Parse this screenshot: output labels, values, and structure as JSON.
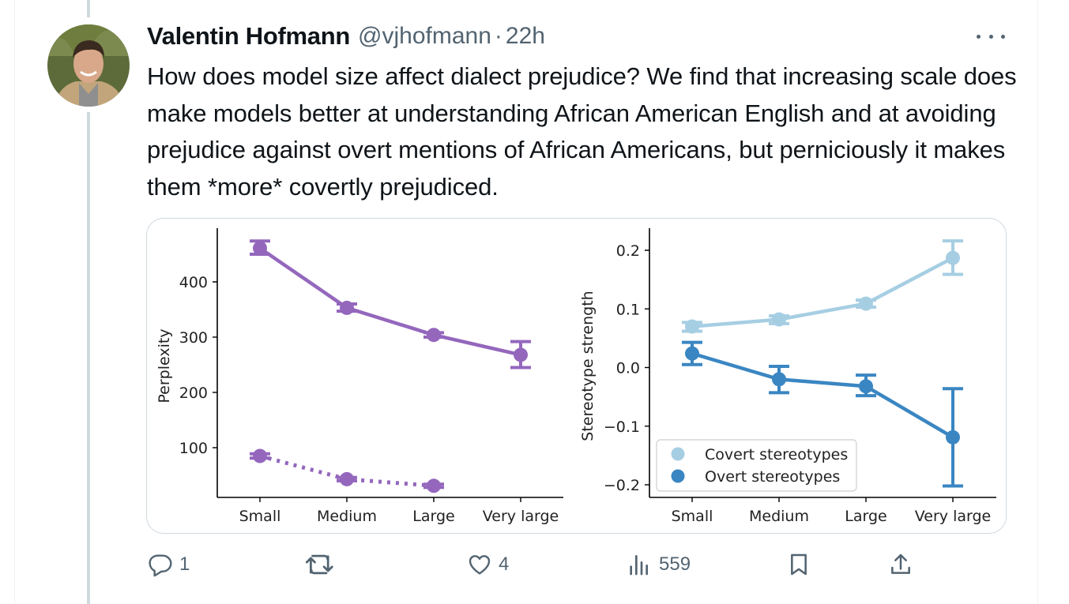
{
  "tweet": {
    "author_name": "Valentin Hofmann",
    "handle": "@vjhofmann",
    "separator": "·",
    "time": "22h",
    "text": "How does model size affect dialect prejudice? We find that increasing scale does make models better at understanding African American English and at avoiding prejudice against overt mentions of African Americans, but perniciously it makes them *more* covertly prejudiced."
  },
  "actions": {
    "replies": "1",
    "likes": "4",
    "views": "559"
  },
  "colors": {
    "purple": "#9467bd",
    "covert": "#a6cee3",
    "overt": "#3a86c2",
    "text_secondary": "#536471"
  },
  "icons": [
    "reply-icon",
    "retweet-icon",
    "like-icon",
    "views-icon",
    "bookmark-icon",
    "share-icon",
    "more-icon"
  ],
  "chart_data": [
    {
      "type": "line",
      "categories": [
        "Small",
        "Medium",
        "Large",
        "Very large"
      ],
      "ylabel": "Perplexity",
      "yticks": [
        100,
        200,
        300,
        400
      ],
      "ylim": [
        20,
        490
      ],
      "series": [
        {
          "style": "solid",
          "color": "#9467bd",
          "values": [
            461,
            353,
            304,
            268
          ],
          "err_low": [
            450,
            347,
            300,
            245
          ],
          "err_high": [
            474,
            360,
            308,
            292
          ]
        },
        {
          "style": "dotted",
          "color": "#9467bd",
          "values": [
            85,
            43,
            31,
            null
          ],
          "err_low": [
            81,
            40,
            28,
            null
          ],
          "err_high": [
            89,
            46,
            34,
            null
          ]
        }
      ]
    },
    {
      "type": "line",
      "categories": [
        "Small",
        "Medium",
        "Large",
        "Very large"
      ],
      "ylabel": "Stereotype strength",
      "yticks": [
        -0.2,
        -0.1,
        0.0,
        0.1,
        0.2
      ],
      "ytick_labels": [
        "−0.2",
        "−0.1",
        "0.0",
        "0.1",
        "0.2"
      ],
      "ylim": [
        -0.225,
        0.235
      ],
      "legend_position": "lower-left",
      "series": [
        {
          "name": "Covert stereotypes",
          "color": "#a6cee3",
          "values": [
            0.07,
            0.082,
            0.109,
            0.187
          ],
          "err_low": [
            0.062,
            0.075,
            0.103,
            0.159
          ],
          "err_high": [
            0.077,
            0.088,
            0.115,
            0.216
          ]
        },
        {
          "name": "Overt stereotypes",
          "color": "#3a86c2",
          "values": [
            0.024,
            -0.02,
            -0.032,
            -0.119
          ],
          "err_low": [
            0.005,
            -0.043,
            -0.048,
            -0.202
          ],
          "err_high": [
            0.043,
            0.002,
            -0.013,
            -0.036
          ]
        }
      ]
    }
  ]
}
